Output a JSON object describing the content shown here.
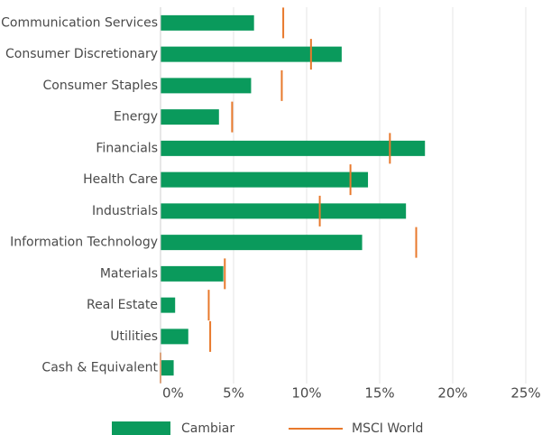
{
  "chart_data": {
    "type": "bar",
    "orientation": "horizontal",
    "categories": [
      "Communication Services",
      "Consumer Discretionary",
      "Consumer Staples",
      "Energy",
      "Financials",
      "Health Care",
      "Industrials",
      "Information Technology",
      "Materials",
      "Real Estate",
      "Utilities",
      "Cash & Equivalent"
    ],
    "series": [
      {
        "name": "Cambiar",
        "color": "#0a9a5c",
        "values": [
          6.4,
          12.4,
          6.2,
          4.0,
          18.1,
          14.2,
          16.8,
          13.8,
          4.3,
          1.0,
          1.9,
          0.9
        ]
      },
      {
        "name": "MSCI World",
        "color": "#e8792c",
        "values": [
          8.4,
          10.3,
          8.3,
          4.9,
          15.7,
          13.0,
          10.9,
          17.5,
          4.4,
          3.3,
          3.4,
          0
        ]
      }
    ],
    "xlim": [
      0,
      25
    ],
    "xticks": [
      {
        "value": 0,
        "label": "0%"
      },
      {
        "value": 5,
        "label": "5%"
      },
      {
        "value": 10,
        "label": "10%"
      },
      {
        "value": 15,
        "label": "15%"
      },
      {
        "value": 20,
        "label": "20%"
      },
      {
        "value": 25,
        "label": "25%"
      }
    ],
    "grid": true,
    "legend": "bottom"
  }
}
